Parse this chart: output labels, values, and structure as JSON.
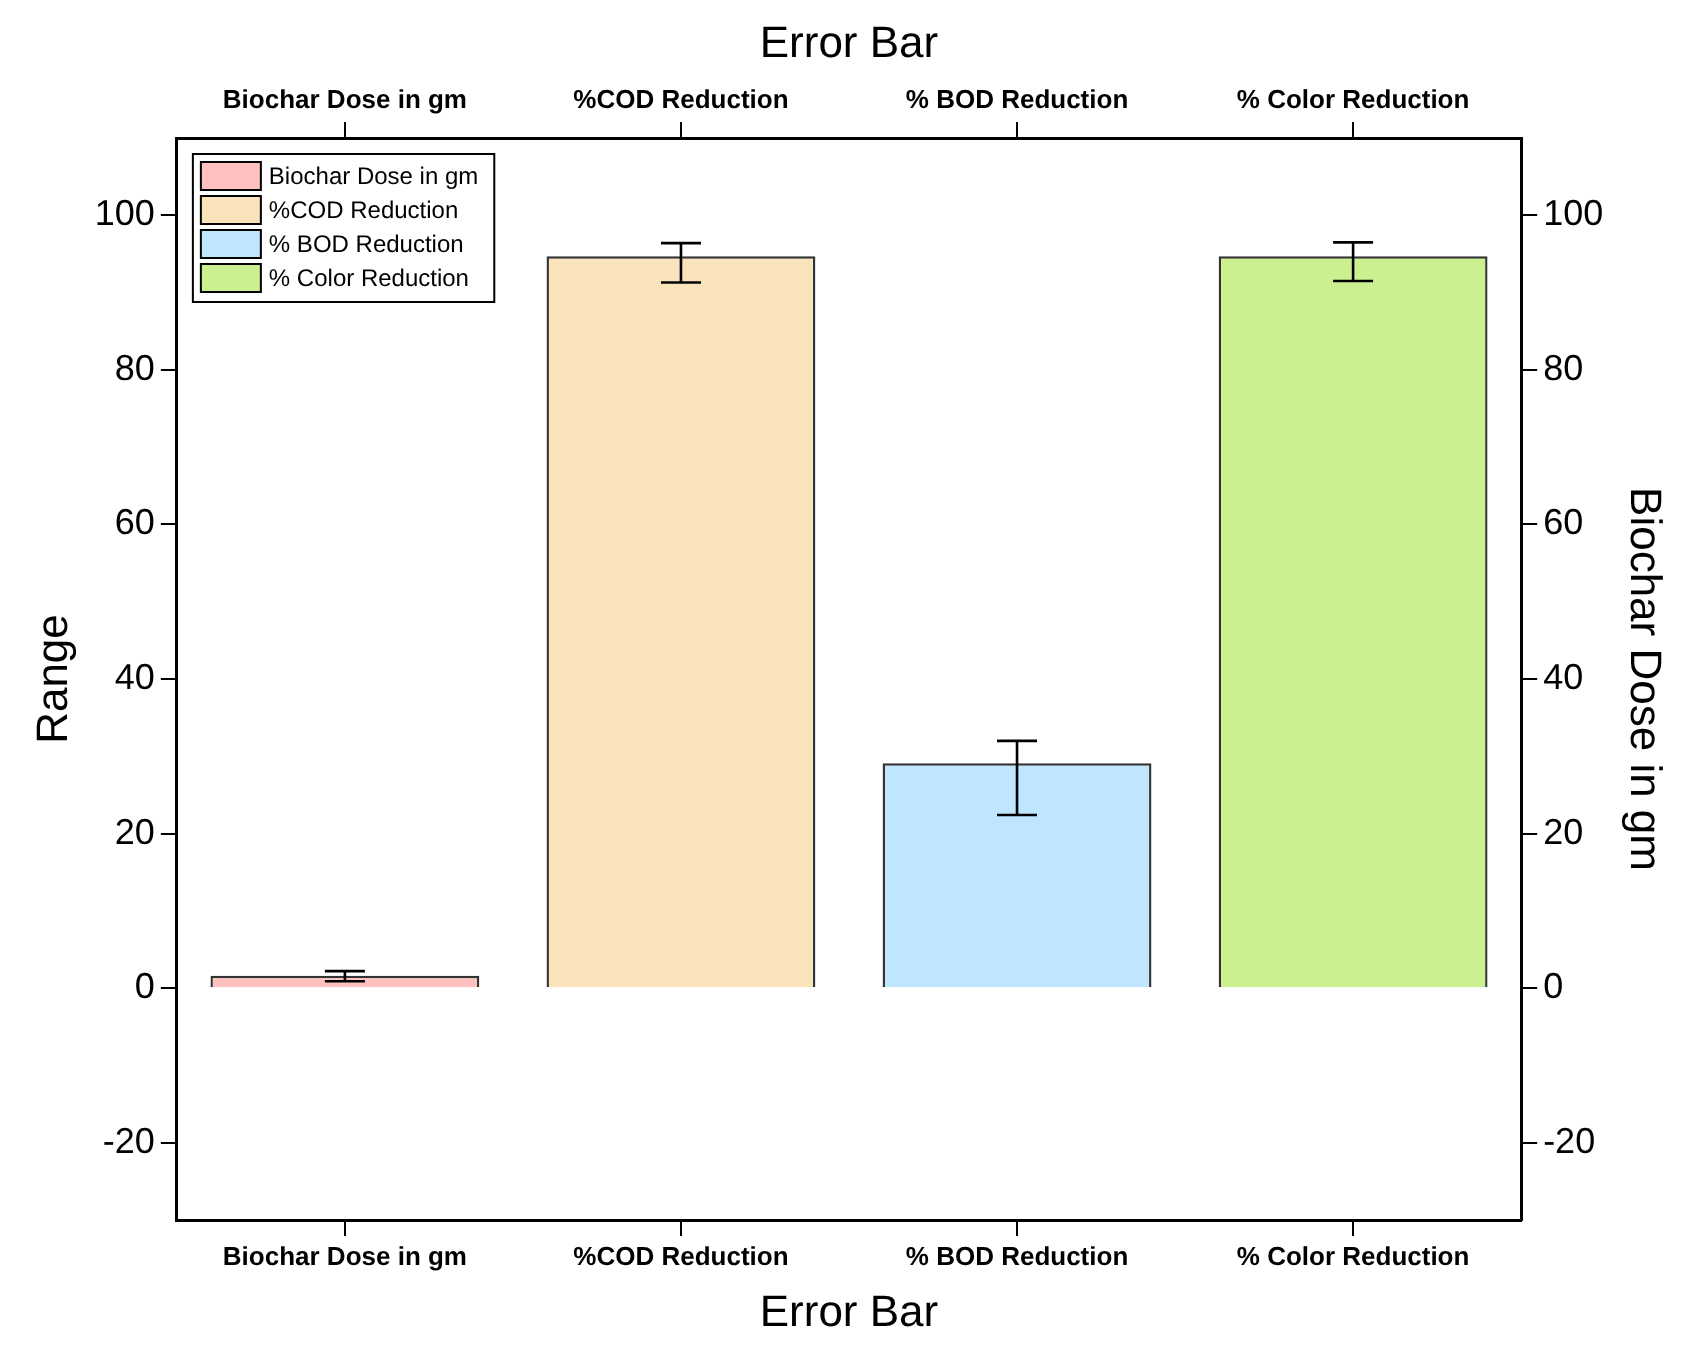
{
  "chart_data": {
    "type": "bar",
    "xlabel": "Error Bar",
    "x2label": "Error Bar",
    "ylabel": "Range",
    "y2label": "Biochar Dose in gm",
    "categories": [
      "Biochar Dose in gm",
      "%COD Reduction",
      "% BOD Reduction",
      "% Color Reduction"
    ],
    "series": [
      {
        "name": "Biochar Dose in gm",
        "color": "#ffc0c0",
        "values": [
          1.6,
          null,
          null,
          null
        ],
        "errors": [
          [
            0.9,
            2.2
          ],
          null,
          null,
          null
        ]
      },
      {
        "name": "%COD Reduction",
        "color": "#f8e3bb",
        "values": [
          null,
          94.7,
          null,
          null
        ],
        "errors": [
          null,
          [
            91.3,
            96.4
          ],
          null,
          null
        ]
      },
      {
        "name": "% BOD Reduction",
        "color": "#bfe6ff",
        "values": [
          null,
          null,
          29.1,
          null
        ],
        "errors": [
          null,
          null,
          [
            22.4,
            32
          ],
          null
        ]
      },
      {
        "name": "% Color Reduction",
        "color": "#ccf08f",
        "values": [
          null,
          null,
          null,
          94.7
        ],
        "errors": [
          null,
          null,
          null,
          [
            91.5,
            96.5
          ]
        ]
      }
    ],
    "ylim": [
      -30,
      110
    ],
    "yticks": [
      -20,
      0,
      20,
      40,
      60,
      80,
      100
    ],
    "y2lim": [
      -30,
      110
    ],
    "y2ticks": [
      -20,
      0,
      20,
      40,
      60,
      80,
      100
    ],
    "legend": "top left",
    "grid": false
  }
}
